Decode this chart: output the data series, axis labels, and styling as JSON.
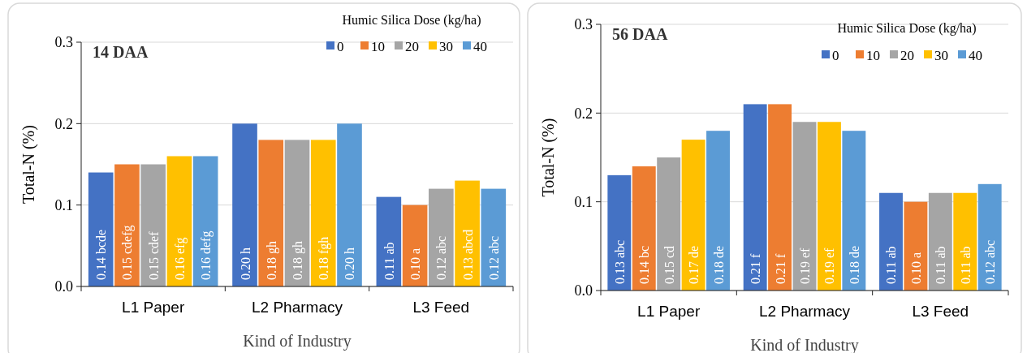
{
  "chart_data": [
    {
      "type": "bar",
      "title": "14 DAA",
      "xlabel": "Kind of Industry",
      "ylabel": "Total-N (%)",
      "legend_title": "Humic Silica Dose (kg/ha)",
      "legend": "top right",
      "grid": "y",
      "categories": [
        "L1 Paper",
        "L2 Pharmacy",
        "L3 Feed"
      ],
      "ylim": [
        0,
        0.3
      ],
      "yticks": [
        {
          "value": 0,
          "label": "0.0"
        },
        {
          "value": 0.1,
          "label": "0.1"
        },
        {
          "value": 0.2,
          "label": "0.2"
        },
        {
          "value": 0.3,
          "label": "0.3"
        }
      ],
      "series": [
        {
          "name": "0",
          "color": "#4472c4",
          "values": [
            0.14,
            0.2,
            0.11
          ],
          "value_labels": [
            "0.14 bcde",
            "0.20 h",
            "0.11 ab"
          ]
        },
        {
          "name": "10",
          "color": "#ed7d31",
          "values": [
            0.15,
            0.18,
            0.1
          ],
          "value_labels": [
            "0.15 cdefg",
            "0.18 gh",
            "0.10 a"
          ]
        },
        {
          "name": "20",
          "color": "#a5a5a5",
          "values": [
            0.15,
            0.18,
            0.12
          ],
          "value_labels": [
            "0.15 cdef",
            "0.18 gh",
            "0.12 abc"
          ]
        },
        {
          "name": "30",
          "color": "#ffc000",
          "values": [
            0.16,
            0.18,
            0.13
          ],
          "value_labels": [
            "0.16 efg",
            "0.18 fgh",
            "0.13 abcd"
          ]
        },
        {
          "name": "40",
          "color": "#5b9bd5",
          "values": [
            0.16,
            0.2,
            0.12
          ],
          "value_labels": [
            "0.16 defg",
            "0.20 h",
            "0.12 abc"
          ]
        }
      ]
    },
    {
      "type": "bar",
      "title": "56 DAA",
      "xlabel": "Kind of Industry",
      "ylabel": "Total-N (%)",
      "legend_title": "Humic Silica Dose (kg/ha)",
      "legend": "top right",
      "grid": "y",
      "categories": [
        "L1 Paper",
        "L2 Pharmacy",
        "L3 Feed"
      ],
      "ylim": [
        0,
        0.3
      ],
      "yticks": [
        {
          "value": 0,
          "label": "0.0"
        },
        {
          "value": 0.1,
          "label": "0.1"
        },
        {
          "value": 0.2,
          "label": "0.2"
        },
        {
          "value": 0.3,
          "label": "0.3"
        }
      ],
      "series": [
        {
          "name": "0",
          "color": "#4472c4",
          "values": [
            0.13,
            0.21,
            0.11
          ],
          "value_labels": [
            "0.13 abc",
            "0.21 f",
            "0.11 ab"
          ]
        },
        {
          "name": "10",
          "color": "#ed7d31",
          "values": [
            0.14,
            0.21,
            0.1
          ],
          "value_labels": [
            "0.14 bc",
            "0.21 f",
            "0.10 a"
          ]
        },
        {
          "name": "20",
          "color": "#a5a5a5",
          "values": [
            0.15,
            0.19,
            0.11
          ],
          "value_labels": [
            "0.15 cd",
            "0.19 ef",
            "0.11 ab"
          ]
        },
        {
          "name": "30",
          "color": "#ffc000",
          "values": [
            0.17,
            0.19,
            0.11
          ],
          "value_labels": [
            "0.17 de",
            "0.19 ef",
            "0.11 ab"
          ]
        },
        {
          "name": "40",
          "color": "#5b9bd5",
          "values": [
            0.18,
            0.18,
            0.12
          ],
          "value_labels": [
            "0.18 de",
            "0.18 de",
            "0.12 abc"
          ]
        }
      ]
    }
  ]
}
